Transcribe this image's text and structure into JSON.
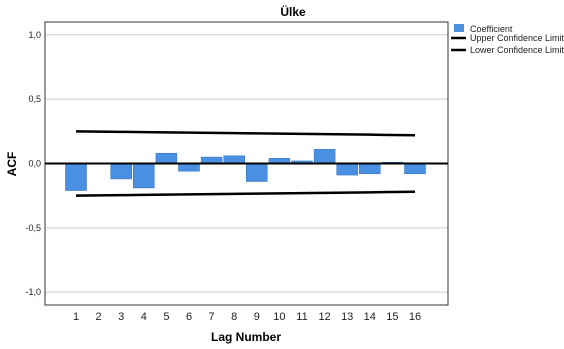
{
  "chart_data": {
    "type": "bar",
    "title": "Ülke",
    "xlabel": "Lag Number",
    "ylabel": "ACF",
    "ylim": [
      -1.1,
      1.1
    ],
    "yticks": [
      {
        "value": 1.0,
        "label": "1,0"
      },
      {
        "value": 0.5,
        "label": "0,5"
      },
      {
        "value": 0.0,
        "label": "0,0"
      },
      {
        "value": -0.5,
        "label": "-0,5"
      },
      {
        "value": -1.0,
        "label": "-1,0"
      }
    ],
    "categories": [
      "1",
      "2",
      "3",
      "4",
      "5",
      "6",
      "7",
      "8",
      "9",
      "10",
      "11",
      "12",
      "13",
      "14",
      "15",
      "16"
    ],
    "series": [
      {
        "name": "Coefficient",
        "values": [
          -0.21,
          0.0,
          -0.12,
          -0.19,
          0.08,
          -0.06,
          0.05,
          0.06,
          -0.14,
          0.04,
          0.02,
          0.11,
          -0.09,
          -0.08,
          0.01,
          -0.08
        ]
      },
      {
        "name": "Upper Confidence Limit",
        "values": [
          0.25,
          0.248,
          0.246,
          0.244,
          0.242,
          0.24,
          0.238,
          0.236,
          0.234,
          0.232,
          0.23,
          0.228,
          0.226,
          0.224,
          0.222,
          0.22
        ]
      },
      {
        "name": "Lower Confidence Limit",
        "values": [
          -0.25,
          -0.248,
          -0.246,
          -0.244,
          -0.242,
          -0.24,
          -0.238,
          -0.236,
          -0.234,
          -0.232,
          -0.23,
          -0.228,
          -0.226,
          -0.224,
          -0.222,
          -0.22
        ]
      }
    ],
    "grid": true,
    "legend_position": "top-right",
    "colors": {
      "bar": "#4a90e2",
      "bar_stroke": "#2f6fb8",
      "limit": "#000000",
      "grid": "#cccccc",
      "zero_line": "#000000"
    }
  }
}
